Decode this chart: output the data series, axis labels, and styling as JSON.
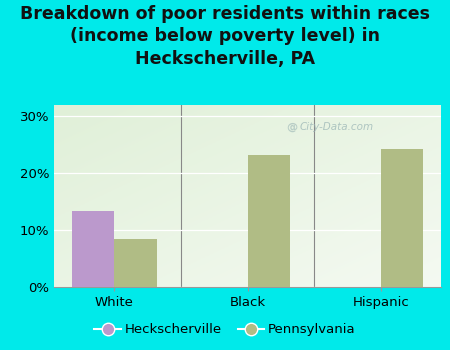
{
  "title": "Breakdown of poor residents within races\n(income below poverty level) in\nHeckscherville, PA",
  "categories": [
    "White",
    "Black",
    "Hispanic"
  ],
  "heckscherville_values": [
    13.3,
    0,
    0
  ],
  "pennsylvania_values": [
    8.5,
    23.2,
    24.2
  ],
  "heckscherville_color": "#bb99cc",
  "pennsylvania_color": "#b0bc85",
  "background_color": "#00eaea",
  "ylim": [
    0,
    32
  ],
  "yticks": [
    0,
    10,
    20,
    30
  ],
  "bar_width": 0.32,
  "title_fontsize": 12.5,
  "tick_fontsize": 9.5,
  "legend_labels": [
    "Heckscherville",
    "Pennsylvania"
  ],
  "watermark": "City-Data.com",
  "title_color": "#111111"
}
